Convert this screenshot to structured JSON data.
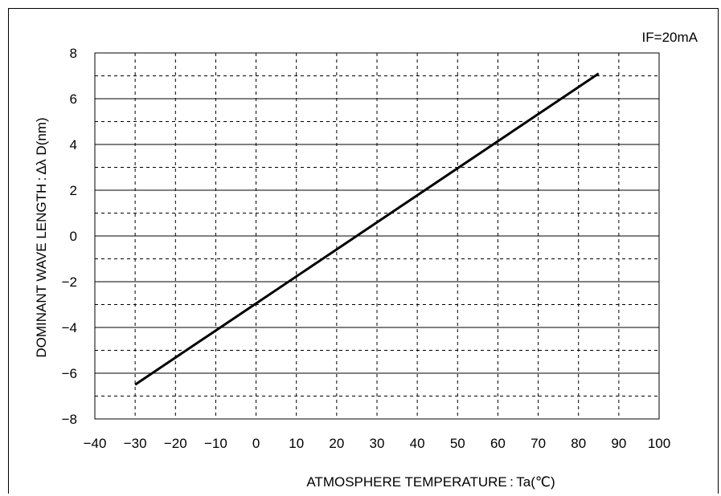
{
  "chart_data": {
    "type": "line",
    "title": "",
    "annotation": "IF=20mA",
    "xlabel": "ATMOSPHERE TEMPERATURE : Ta(℃)",
    "ylabel": "DOMINANT WAVE LENGTH : ∆λ D(nm)",
    "xlim": [
      -40,
      100
    ],
    "ylim": [
      -8,
      8
    ],
    "x_ticks": [
      -40,
      -30,
      -20,
      -10,
      0,
      10,
      20,
      30,
      40,
      50,
      60,
      70,
      80,
      90,
      100
    ],
    "x_tick_labels": [
      "−40",
      "−30",
      "−20",
      "−10",
      "0",
      "10",
      "20",
      "30",
      "40",
      "50",
      "60",
      "70",
      "80",
      "90",
      "100"
    ],
    "y_ticks": [
      -8,
      -6,
      -4,
      -2,
      0,
      2,
      4,
      6,
      8
    ],
    "y_tick_labels": [
      "−8",
      "−6",
      "−4",
      "−2",
      "0",
      "2",
      "4",
      "6",
      "8"
    ],
    "y_minor_ticks": [
      -7,
      -5,
      -3,
      -1,
      1,
      3,
      5,
      7
    ],
    "grid": true,
    "series": [
      {
        "x": [
          -30,
          85
        ],
        "y": [
          -6.5,
          7.1
        ],
        "color": "#000000"
      }
    ]
  }
}
